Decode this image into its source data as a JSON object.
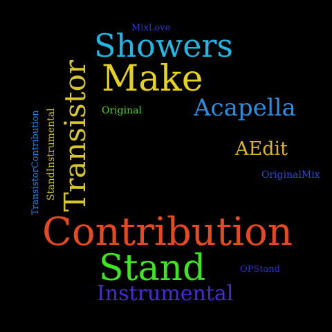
{
  "cloud": {
    "background": "#000000",
    "words": [
      {
        "text": "Showers",
        "color": "#1fb8e6"
      },
      {
        "text": "MixLove",
        "color": "#2b3ad6"
      },
      {
        "text": "Make",
        "color": "#e6d21c"
      },
      {
        "text": "Transistor",
        "color": "#d9c62a"
      },
      {
        "text": "TransistorContribution",
        "color": "#2a86d6"
      },
      {
        "text": "StandInstrumental",
        "color": "#c9c32a"
      },
      {
        "text": "Original",
        "color": "#4fd81f"
      },
      {
        "text": "Acapella",
        "color": "#2a8fe0"
      },
      {
        "text": "AEdit",
        "color": "#e0b51c"
      },
      {
        "text": "OriginalMix",
        "color": "#2a4bd6"
      },
      {
        "text": "Contribution",
        "color": "#e6491f"
      },
      {
        "text": "Stand",
        "color": "#3ee61f"
      },
      {
        "text": "OPStand",
        "color": "#2a2fd0"
      },
      {
        "text": "Instrumental",
        "color": "#4a2ad6"
      }
    ]
  }
}
